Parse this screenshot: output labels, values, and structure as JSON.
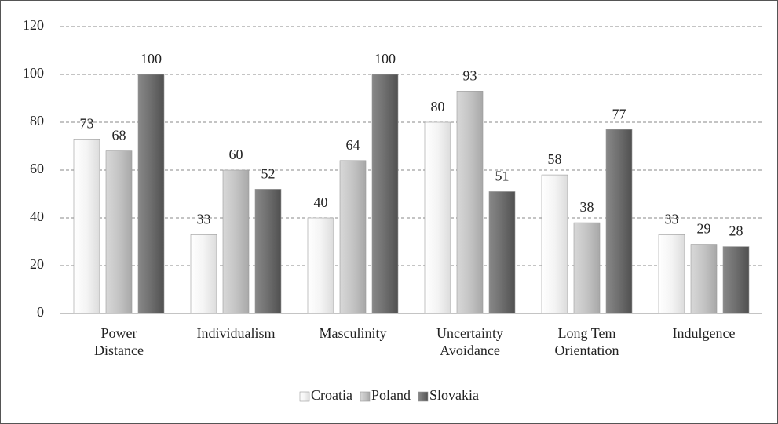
{
  "chart_data": {
    "type": "bar",
    "categories": [
      "Power\nDistance",
      "Individualism",
      "Masculinity",
      "Uncertainty\nAvoidance",
      "Long Tem\nOrientation",
      "Indulgence"
    ],
    "series": [
      {
        "name": "Croatia",
        "color": "#f4f4f4",
        "values": [
          73,
          33,
          40,
          80,
          58,
          33
        ]
      },
      {
        "name": "Poland",
        "color": "#c4c4c4",
        "values": [
          68,
          60,
          64,
          93,
          38,
          29
        ]
      },
      {
        "name": "Slovakia",
        "color": "#6e6e6e",
        "values": [
          100,
          52,
          100,
          51,
          77,
          28
        ]
      }
    ],
    "ylim": [
      0,
      120
    ],
    "yticks": [
      0,
      20,
      40,
      60,
      80,
      100,
      120
    ],
    "grid": true,
    "legend": "bottom"
  }
}
